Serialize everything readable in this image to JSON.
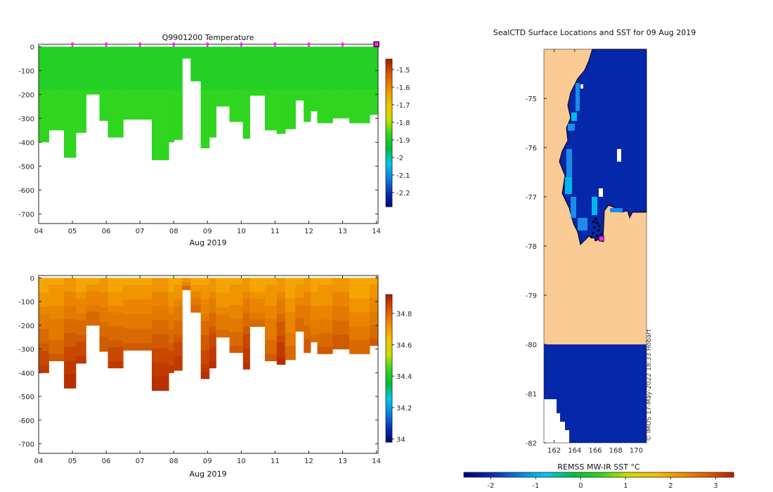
{
  "chart_data": [
    {
      "type": "heatmap",
      "title": "Q9901200  Temperature",
      "xlabel": "Aug 2019",
      "ylabel": "",
      "xlim": [
        4,
        14.05
      ],
      "ylim": [
        -740,
        10
      ],
      "x_ticks": [
        4,
        5,
        6,
        7,
        8,
        9,
        10,
        11,
        12,
        13,
        14
      ],
      "x_tick_labels": [
        "04",
        "05",
        "06",
        "07",
        "08",
        "09",
        "10",
        "11",
        "12",
        "13",
        "14"
      ],
      "y_ticks": [
        0,
        -100,
        -200,
        -300,
        -400,
        -500,
        -600,
        -700
      ],
      "y_tick_labels": [
        "0",
        "-100",
        "-200",
        "-300",
        "-400",
        "-500",
        "-600",
        "-700"
      ],
      "profiles": [
        {
          "x0": 4.0,
          "x1": 4.3,
          "bottom": -400
        },
        {
          "x0": 4.3,
          "x1": 4.75,
          "bottom": -350
        },
        {
          "x0": 4.75,
          "x1": 5.1,
          "bottom": -465
        },
        {
          "x0": 5.1,
          "x1": 5.4,
          "bottom": -360
        },
        {
          "x0": 5.4,
          "x1": 5.8,
          "bottom": -200
        },
        {
          "x0": 5.8,
          "x1": 6.05,
          "bottom": -310
        },
        {
          "x0": 6.05,
          "x1": 6.5,
          "bottom": -380
        },
        {
          "x0": 6.5,
          "x1": 7.35,
          "bottom": -305
        },
        {
          "x0": 7.35,
          "x1": 7.85,
          "bottom": -475
        },
        {
          "x0": 7.85,
          "x1": 8.0,
          "bottom": -400
        },
        {
          "x0": 8.0,
          "x1": 8.25,
          "bottom": -390
        },
        {
          "x0": 8.25,
          "x1": 8.5,
          "bottom": -50
        },
        {
          "x0": 8.5,
          "x1": 8.8,
          "bottom": -145
        },
        {
          "x0": 8.8,
          "x1": 9.05,
          "bottom": -425
        },
        {
          "x0": 9.05,
          "x1": 9.25,
          "bottom": -380
        },
        {
          "x0": 9.25,
          "x1": 9.65,
          "bottom": -250
        },
        {
          "x0": 9.65,
          "x1": 10.05,
          "bottom": -315
        },
        {
          "x0": 10.05,
          "x1": 10.25,
          "bottom": -385
        },
        {
          "x0": 10.25,
          "x1": 10.7,
          "bottom": -205
        },
        {
          "x0": 10.7,
          "x1": 11.05,
          "bottom": -350
        },
        {
          "x0": 11.05,
          "x1": 11.3,
          "bottom": -365
        },
        {
          "x0": 11.3,
          "x1": 11.6,
          "bottom": -345
        },
        {
          "x0": 11.6,
          "x1": 11.85,
          "bottom": -225
        },
        {
          "x0": 11.85,
          "x1": 12.05,
          "bottom": -315
        },
        {
          "x0": 12.05,
          "x1": 12.25,
          "bottom": -270
        },
        {
          "x0": 12.25,
          "x1": 12.7,
          "bottom": -320
        },
        {
          "x0": 12.7,
          "x1": 13.2,
          "bottom": -300
        },
        {
          "x0": 13.2,
          "x1": 13.8,
          "bottom": -320
        },
        {
          "x0": 13.8,
          "x1": 14.05,
          "bottom": -285
        }
      ],
      "fill_values": [
        -1.88,
        -1.86
      ],
      "station_markers": [
        5,
        6,
        7,
        8,
        9,
        10,
        11,
        12,
        13
      ],
      "end_marker": 14,
      "colorbar": {
        "min": -2.28,
        "max": -1.44,
        "ticks": [
          -1.5,
          -1.6,
          -1.7,
          -1.8,
          -1.9,
          -2,
          -2.1,
          -2.2
        ],
        "tick_labels": [
          "-1.5",
          "-1.6",
          "-1.7",
          "-1.8",
          "-1.9",
          "-2",
          "-2.1",
          "-2.2"
        ]
      }
    },
    {
      "type": "heatmap",
      "title": "",
      "xlabel": "Aug 2019",
      "ylabel": "",
      "xlim": [
        4,
        14.05
      ],
      "ylim": [
        -740,
        10
      ],
      "x_ticks": [
        4,
        5,
        6,
        7,
        8,
        9,
        10,
        11,
        12,
        13,
        14
      ],
      "x_tick_labels": [
        "04",
        "05",
        "06",
        "07",
        "08",
        "09",
        "10",
        "11",
        "12",
        "13",
        "14"
      ],
      "y_ticks": [
        0,
        -100,
        -200,
        -300,
        -400,
        -500,
        -600,
        -700
      ],
      "y_tick_labels": [
        "0",
        "-100",
        "-200",
        "-300",
        "-400",
        "-500",
        "-600",
        "-700"
      ],
      "surface_value": 34.72,
      "deep_value": 34.86,
      "colorbar": {
        "min": 33.98,
        "max": 34.92,
        "ticks": [
          34.8,
          34.6,
          34.4,
          34.2,
          34
        ],
        "tick_labels": [
          "34.8",
          "34.6",
          "34.4",
          "34.2",
          "34"
        ]
      }
    },
    {
      "type": "heatmap",
      "title": "SealCTD Surface Locations and SST for 09 Aug 2019",
      "xlim": [
        161,
        171
      ],
      "ylim": [
        -82,
        -74
      ],
      "x_ticks": [
        162,
        164,
        166,
        168,
        170
      ],
      "x_tick_labels": [
        "162",
        "164",
        "166",
        "168",
        "170"
      ],
      "y_ticks": [
        -75,
        -76,
        -77,
        -78,
        -79,
        -80,
        -81,
        -82
      ],
      "y_tick_labels": [
        "-75",
        "-76",
        "-77",
        "-78",
        "-79",
        "-80",
        "-81",
        "-82"
      ],
      "land_color": "#fbcb96",
      "sea_color": "#0527aa",
      "sst_value": -1.9,
      "current_location": {
        "lon": 166.6,
        "lat": -77.85
      },
      "colorbar": {
        "label": "REMSS MW-IR SST °C",
        "min": -2.6,
        "max": 3.4,
        "ticks": [
          -2,
          -1,
          0,
          1,
          2,
          3
        ],
        "tick_labels": [
          "-2",
          "-1",
          "0",
          "1",
          "2",
          "3"
        ]
      },
      "credit": "© IMOS 17-May-2022 18:33 Hobart"
    }
  ],
  "colors": {
    "marker": "#ff22ff",
    "axis": "#262626"
  }
}
